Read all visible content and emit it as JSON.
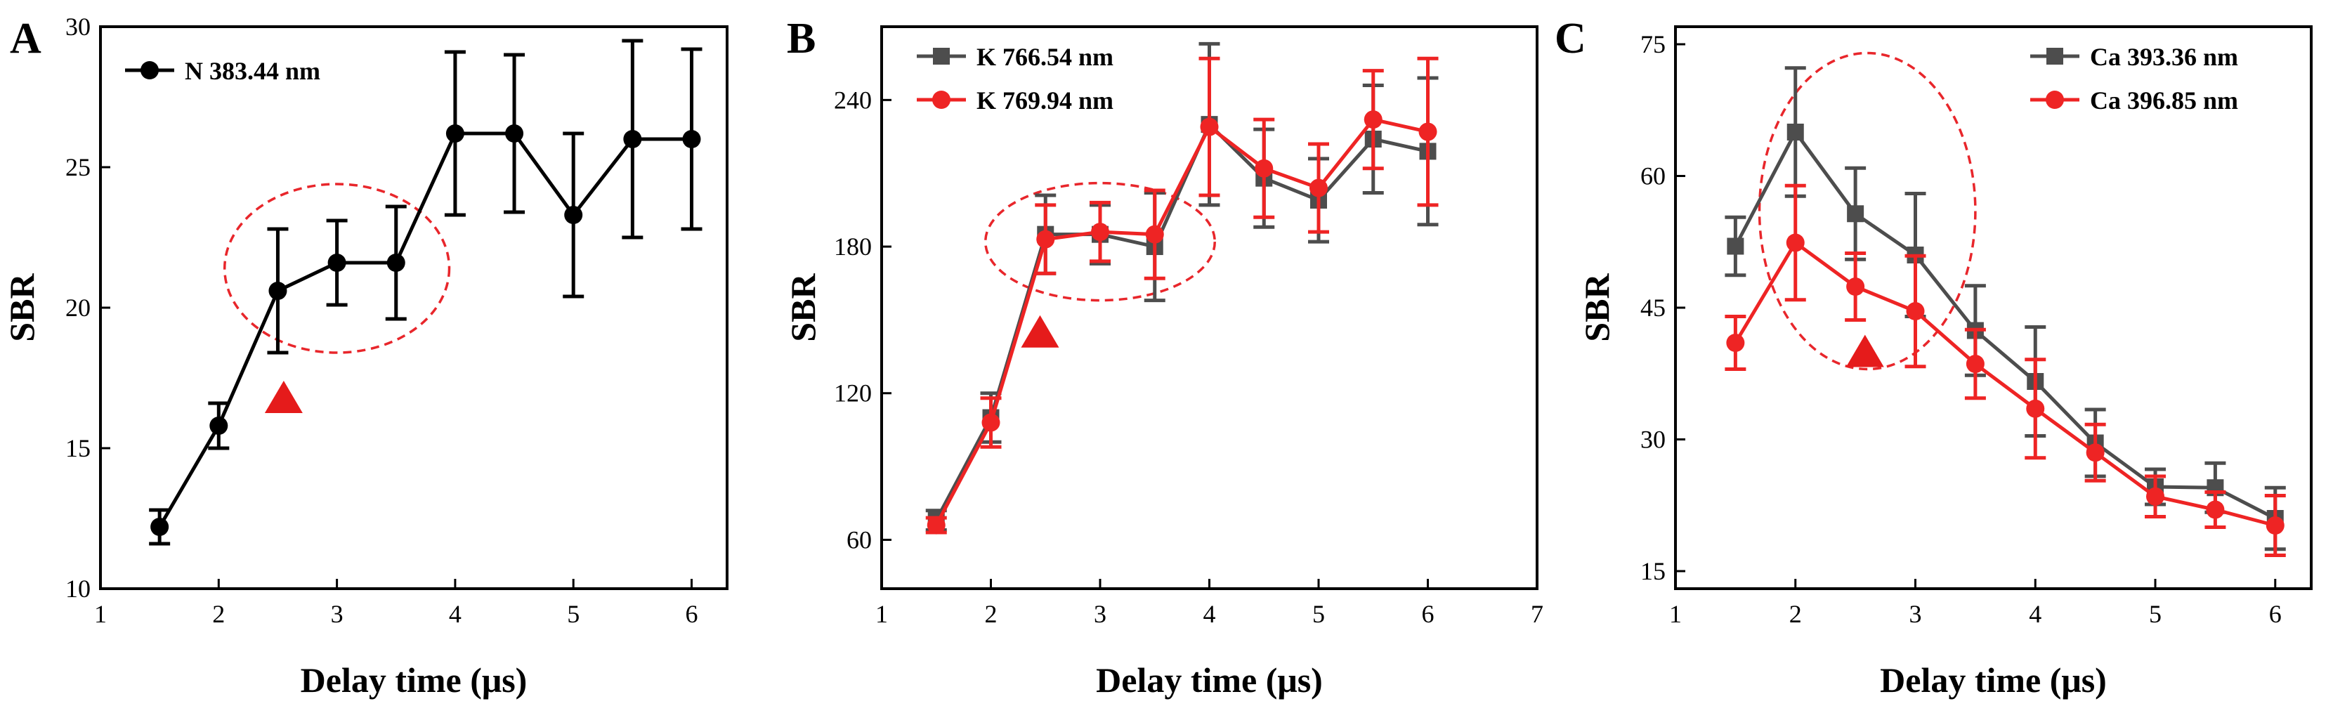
{
  "chart_data": [
    {
      "type": "line",
      "panel": "A",
      "xlabel": "Delay time (μs)",
      "ylabel": "SBR",
      "xlim": [
        1,
        6.3
      ],
      "ylim": [
        10,
        30
      ],
      "xticks": [
        1,
        2,
        3,
        4,
        5,
        6
      ],
      "yticks": [
        10,
        15,
        20,
        25,
        30
      ],
      "xtick_labels": [
        "1",
        "2",
        "3",
        "4",
        "5",
        "6"
      ],
      "ytick_labels": [
        "10",
        "15",
        "20",
        "25",
        "30"
      ],
      "legend_position": "top-left",
      "series": [
        {
          "name": "N 383.44 nm",
          "color": "#000000",
          "marker": "circle",
          "x": [
            1.5,
            2,
            2.5,
            3,
            3.5,
            4,
            4.5,
            5,
            5.5,
            6
          ],
          "y": [
            12.2,
            15.8,
            20.6,
            21.6,
            21.6,
            26.2,
            26.2,
            23.3,
            26.0,
            26.0
          ],
          "err": [
            0.6,
            0.8,
            2.2,
            1.5,
            2.0,
            2.9,
            2.8,
            2.9,
            3.5,
            3.2
          ]
        }
      ],
      "annotations": {
        "ellipse": {
          "cx": 3.0,
          "cy": 21.4,
          "rx": 0.95,
          "ry": 3.0,
          "color": "#e8262b"
        },
        "triangle": {
          "x": 2.55,
          "y": 16.8,
          "color": "#e51b1b"
        }
      }
    },
    {
      "type": "line",
      "panel": "B",
      "xlabel": "Delay time (μs)",
      "ylabel": "SBR",
      "xlim": [
        1,
        7
      ],
      "ylim": [
        40,
        270
      ],
      "xticks": [
        1,
        2,
        3,
        4,
        5,
        6,
        7
      ],
      "yticks": [
        60,
        120,
        180,
        240
      ],
      "xtick_labels": [
        "1",
        "2",
        "3",
        "4",
        "5",
        "6",
        "7"
      ],
      "ytick_labels": [
        "60",
        "120",
        "180",
        "240"
      ],
      "legend_position": "top-left",
      "series": [
        {
          "name": "K 766.54 nm",
          "color": "#4d4d4d",
          "marker": "square",
          "x": [
            1.5,
            2,
            2.5,
            3,
            3.5,
            4,
            4.5,
            5,
            5.5,
            6
          ],
          "y": [
            68,
            110,
            185,
            185,
            180,
            230,
            208,
            199,
            224,
            219
          ],
          "err": [
            4,
            10,
            16,
            12,
            22,
            33,
            20,
            17,
            22,
            30
          ]
        },
        {
          "name": "K 769.94 nm",
          "color": "#ee2424",
          "marker": "circle",
          "x": [
            1.5,
            2,
            2.5,
            3,
            3.5,
            4,
            4.5,
            5,
            5.5,
            6
          ],
          "y": [
            66,
            108,
            183,
            186,
            185,
            229,
            212,
            204,
            232,
            227
          ],
          "err": [
            3,
            10,
            14,
            12,
            18,
            28,
            20,
            18,
            20,
            30
          ]
        }
      ],
      "annotations": {
        "ellipse": {
          "cx": 3.0,
          "cy": 182,
          "rx": 1.05,
          "ry": 24,
          "color": "#e8262b"
        },
        "triangle": {
          "x": 2.45,
          "y": 145,
          "color": "#e51b1b"
        }
      }
    },
    {
      "type": "line",
      "panel": "C",
      "xlabel": "Delay time (μs)",
      "ylabel": "SBR",
      "xlim": [
        1,
        6.3
      ],
      "ylim": [
        13,
        77
      ],
      "xticks": [
        1,
        2,
        3,
        4,
        5,
        6
      ],
      "yticks": [
        15,
        30,
        45,
        60,
        75
      ],
      "xtick_labels": [
        "1",
        "2",
        "3",
        "4",
        "5",
        "6"
      ],
      "ytick_labels": [
        "15",
        "30",
        "45",
        "60",
        "75"
      ],
      "legend_position": "top-right",
      "series": [
        {
          "name": "Ca 393.36 nm",
          "color": "#4d4d4d",
          "marker": "square",
          "x": [
            1.5,
            2,
            2.5,
            3,
            3.5,
            4,
            4.5,
            5,
            5.5,
            6
          ],
          "y": [
            52,
            65,
            55.7,
            51,
            42.4,
            36.6,
            29.6,
            24.6,
            24.5,
            21
          ],
          "err": [
            3.3,
            7.3,
            5.2,
            7,
            5.1,
            6.2,
            3.8,
            2.0,
            2.8,
            3.5
          ]
        },
        {
          "name": "Ca 396.85 nm",
          "color": "#ee2424",
          "marker": "circle",
          "x": [
            1.5,
            2,
            2.5,
            3,
            3.5,
            4,
            4.5,
            5,
            5.5,
            6
          ],
          "y": [
            41,
            52.4,
            47.4,
            44.6,
            38.6,
            33.5,
            28.5,
            23.5,
            22,
            20.2
          ],
          "err": [
            3,
            6.5,
            3.8,
            6.3,
            3.9,
            5.6,
            3.2,
            2.3,
            2.0,
            3.4
          ]
        }
      ],
      "annotations": {
        "ellipse": {
          "cx": 2.6,
          "cy": 56,
          "rx": 0.9,
          "ry": 18,
          "color": "#e8262b"
        },
        "triangle": {
          "x": 2.58,
          "y": 40,
          "color": "#e51b1b"
        }
      }
    }
  ]
}
